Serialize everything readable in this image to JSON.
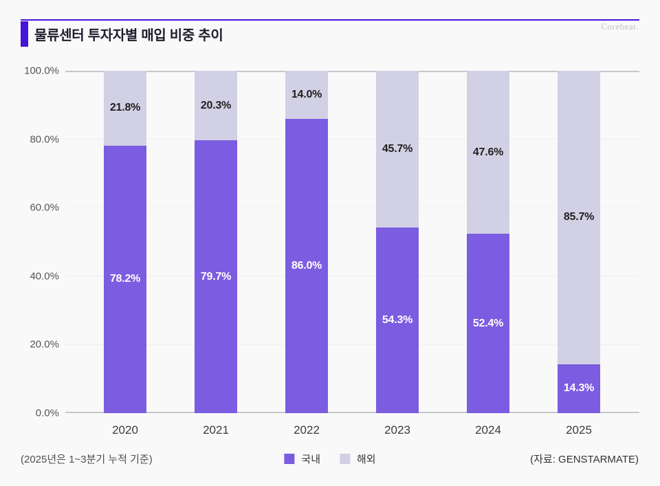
{
  "page": {
    "brand": "Corebeat.",
    "title": "물류센터 투자자별 매입 비중 추이",
    "footnote": "(2025년은 1~3분기 누적 기준)",
    "source": "(자료: GENSTARMATE)"
  },
  "colors": {
    "accent": "#4714d9",
    "domestic_bar": "#7c5ce0",
    "overseas_bar": "#d2d0e4",
    "label_on_domestic": "#ffffff",
    "label_on_overseas": "#1f1f1f"
  },
  "chart_data": {
    "type": "bar",
    "stacked": true,
    "title": "물류센터 투자자별 매입 비중 추이",
    "categories": [
      "2020",
      "2021",
      "2022",
      "2023",
      "2024",
      "2025"
    ],
    "series": [
      {
        "key": "domestic",
        "name": "국내",
        "values": [
          78.2,
          79.7,
          86.0,
          54.3,
          52.4,
          14.3
        ],
        "color": "#7c5ce0",
        "label_color": "#ffffff"
      },
      {
        "key": "overseas",
        "name": "해외",
        "values": [
          21.8,
          20.3,
          14.0,
          45.7,
          47.6,
          85.7
        ],
        "color": "#d2d0e4",
        "label_color": "#1f1f1f"
      }
    ],
    "xlabel": "",
    "ylabel": "",
    "ylim": [
      0,
      100
    ],
    "yticks_percent": [
      0,
      20,
      40,
      60,
      80,
      100
    ],
    "ytick_labels": [
      "0.0%",
      "20.0%",
      "40.0%",
      "60.0%",
      "80.0%",
      "100.0%"
    ],
    "grid": true,
    "value_suffix": "%",
    "legend_position": "bottom-center"
  },
  "legend": {
    "items": [
      {
        "key": "domestic",
        "label": "국내",
        "color": "#7c5ce0"
      },
      {
        "key": "overseas",
        "label": "해외",
        "color": "#d2d0e4"
      }
    ]
  }
}
